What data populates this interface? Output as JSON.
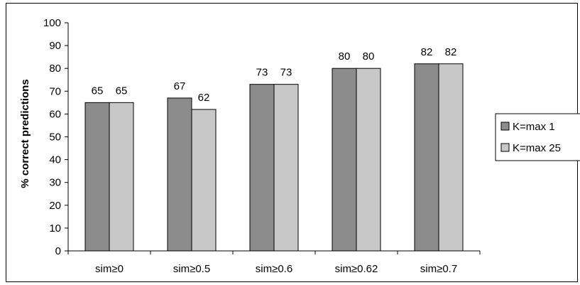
{
  "chart_data": {
    "type": "bar",
    "categories": [
      "sim≥0",
      "sim≥0.5",
      "sim≥0.6",
      "sim≥0.62",
      "sim≥0.7"
    ],
    "series": [
      {
        "name": "K=max 1",
        "values": [
          65,
          67,
          73,
          80,
          82
        ],
        "color": "#8c8c8c"
      },
      {
        "name": "K=max 25",
        "values": [
          65,
          62,
          73,
          80,
          82
        ],
        "color": "#c8c8c8"
      }
    ],
    "ylabel": "% correct predictions",
    "xlabel": "",
    "ylim": [
      0,
      100
    ],
    "yticks": [
      0,
      10,
      20,
      30,
      40,
      50,
      60,
      70,
      80,
      90,
      100
    ],
    "data_labels": [
      [
        "65",
        "67",
        "73",
        "80",
        "82"
      ],
      [
        "65",
        "62",
        "73",
        "80",
        "82"
      ]
    ],
    "grid": false,
    "legend_position": "right"
  }
}
